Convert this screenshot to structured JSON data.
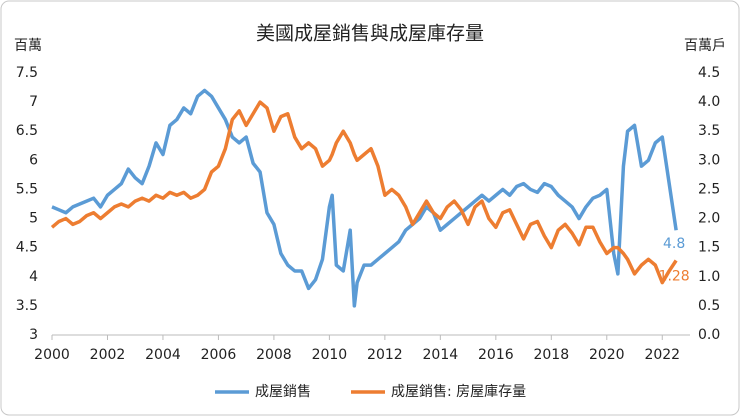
{
  "chart_data": {
    "type": "line",
    "title": "美國成屋銷售與成屋庫存量",
    "y_label": "百萬",
    "y2_label": "百萬戶",
    "x": [
      2000,
      2000.25,
      2000.5,
      2000.75,
      2001,
      2001.25,
      2001.5,
      2001.75,
      2002,
      2002.25,
      2002.5,
      2002.75,
      2003,
      2003.25,
      2003.5,
      2003.75,
      2004,
      2004.25,
      2004.5,
      2004.75,
      2005,
      2005.25,
      2005.5,
      2005.75,
      2006,
      2006.25,
      2006.5,
      2006.75,
      2007,
      2007.25,
      2007.5,
      2007.75,
      2008,
      2008.25,
      2008.5,
      2008.75,
      2009,
      2009.25,
      2009.5,
      2009.75,
      2010,
      2010.1,
      2010.25,
      2010.5,
      2010.75,
      2010.9,
      2011,
      2011.25,
      2011.5,
      2011.75,
      2012,
      2012.25,
      2012.5,
      2012.75,
      2013,
      2013.25,
      2013.5,
      2013.75,
      2014,
      2014.25,
      2014.5,
      2014.75,
      2015,
      2015.25,
      2015.5,
      2015.75,
      2016,
      2016.25,
      2016.5,
      2016.75,
      2017,
      2017.25,
      2017.5,
      2017.75,
      2018,
      2018.25,
      2018.5,
      2018.75,
      2019,
      2019.25,
      2019.5,
      2019.75,
      2020,
      2020.25,
      2020.4,
      2020.6,
      2020.75,
      2021,
      2021.25,
      2021.5,
      2021.75,
      2022,
      2022.25,
      2022.5
    ],
    "series": [
      {
        "name": "成屋銷售",
        "color": "#5b9bd5",
        "axis": "y",
        "values": [
          5.2,
          5.15,
          5.1,
          5.2,
          5.25,
          5.3,
          5.35,
          5.2,
          5.4,
          5.5,
          5.6,
          5.85,
          5.7,
          5.6,
          5.9,
          6.3,
          6.1,
          6.6,
          6.7,
          6.9,
          6.8,
          7.1,
          7.2,
          7.1,
          6.9,
          6.7,
          6.4,
          6.3,
          6.4,
          5.95,
          5.8,
          5.1,
          4.9,
          4.4,
          4.2,
          4.1,
          4.1,
          3.8,
          3.95,
          4.3,
          5.2,
          5.4,
          4.2,
          4.1,
          4.8,
          3.5,
          3.9,
          4.2,
          4.2,
          4.3,
          4.4,
          4.5,
          4.6,
          4.8,
          4.9,
          5.0,
          5.2,
          5.1,
          4.8,
          4.9,
          5.0,
          5.1,
          5.2,
          5.3,
          5.4,
          5.3,
          5.4,
          5.5,
          5.4,
          5.55,
          5.6,
          5.5,
          5.45,
          5.6,
          5.55,
          5.4,
          5.3,
          5.2,
          5.0,
          5.2,
          5.35,
          5.4,
          5.5,
          4.4,
          4.05,
          5.9,
          6.5,
          6.6,
          5.9,
          6.0,
          6.3,
          6.4,
          5.6,
          4.8
        ]
      },
      {
        "name": "成屋銷售: 房屋庫存量",
        "color": "#ed7d31",
        "axis": "y2",
        "values": [
          1.85,
          1.95,
          2.0,
          1.9,
          1.95,
          2.05,
          2.1,
          2.0,
          2.1,
          2.2,
          2.25,
          2.2,
          2.3,
          2.35,
          2.3,
          2.4,
          2.35,
          2.45,
          2.4,
          2.45,
          2.35,
          2.4,
          2.5,
          2.8,
          2.9,
          3.2,
          3.7,
          3.85,
          3.6,
          3.8,
          4.0,
          3.9,
          3.5,
          3.75,
          3.8,
          3.4,
          3.2,
          3.3,
          3.2,
          2.9,
          3.0,
          3.1,
          3.3,
          3.5,
          3.3,
          3.1,
          3.0,
          3.1,
          3.2,
          2.9,
          2.4,
          2.5,
          2.4,
          2.2,
          1.9,
          2.1,
          2.3,
          2.1,
          2.0,
          2.2,
          2.3,
          2.15,
          1.9,
          2.2,
          2.3,
          2.0,
          1.85,
          2.1,
          2.15,
          1.9,
          1.65,
          1.9,
          1.95,
          1.7,
          1.5,
          1.8,
          1.9,
          1.75,
          1.55,
          1.85,
          1.85,
          1.6,
          1.4,
          1.5,
          1.5,
          1.4,
          1.3,
          1.05,
          1.2,
          1.3,
          1.2,
          0.9,
          1.1,
          1.28
        ]
      }
    ],
    "xlim": [
      2000,
      2023
    ],
    "xticks": [
      2000,
      2002,
      2004,
      2006,
      2008,
      2010,
      2012,
      2014,
      2016,
      2018,
      2020,
      2022
    ],
    "ylim": [
      3,
      7.5
    ],
    "yticks": [
      3,
      3.5,
      4,
      4.5,
      5,
      5.5,
      6,
      6.5,
      7,
      7.5
    ],
    "y2lim": [
      0,
      4.5
    ],
    "y2ticks": [
      {
        "value": 0,
        "label": "0.0"
      },
      0.5,
      {
        "value": 1,
        "label": "1.0"
      },
      1.5,
      {
        "value": 2,
        "label": "2.0"
      },
      2.5,
      {
        "value": 3,
        "label": "3.0"
      },
      3.5,
      {
        "value": 4,
        "label": "4.0"
      },
      4.5
    ],
    "grid": false,
    "legend": "bottom"
  }
}
